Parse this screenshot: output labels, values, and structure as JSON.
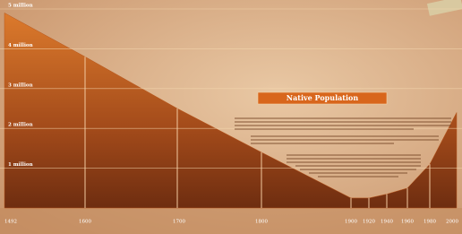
{
  "chart_data": {
    "type": "area",
    "title": "Native Population",
    "categories": [
      "1492",
      "1600",
      "1700",
      "1800",
      "1900",
      "1920",
      "1940",
      "1960",
      "1980",
      "2000"
    ],
    "series": [
      {
        "name": "Native Population",
        "color": "#b8561c",
        "values": [
          4.9,
          3.8,
          2.5,
          1.4,
          0.25,
          0.25,
          0.35,
          0.5,
          1.1,
          2.4
        ]
      }
    ],
    "ylim": [
      0,
      5
    ],
    "yticks": [
      {
        "value": 1,
        "label": "1 million"
      },
      {
        "value": 2,
        "label": "2 million"
      },
      {
        "value": 3,
        "label": "3 million"
      },
      {
        "value": 4,
        "label": "4 million"
      },
      {
        "value": 5,
        "label": "5 million"
      }
    ],
    "grid": true
  }
}
